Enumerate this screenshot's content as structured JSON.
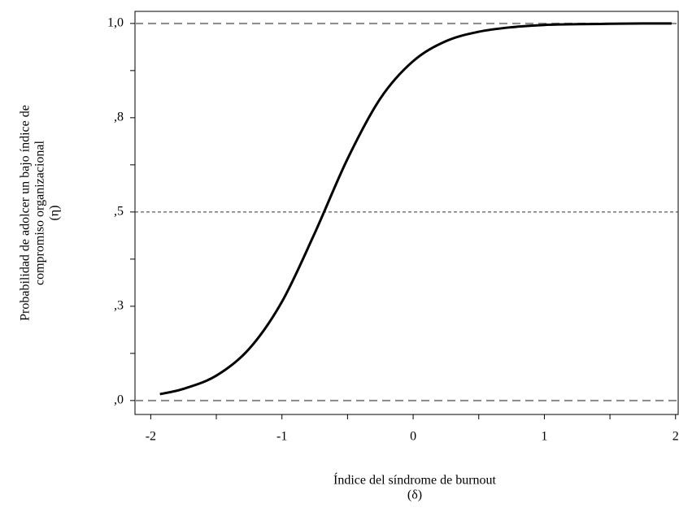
{
  "chart_data": {
    "type": "line",
    "x_label": [
      "Índice del síndrome de burnout",
      "(δ)"
    ],
    "y_label": [
      "Probabilidad de adolcer un bajo índice de",
      "compromiso organizacional",
      "(η)"
    ],
    "x": [
      -1.93,
      -1.75,
      -1.5,
      -1.25,
      -1,
      -0.75,
      -0.5,
      -0.25,
      0,
      0.25,
      0.5,
      0.75,
      1,
      1.25,
      1.5,
      1.75,
      1.97
    ],
    "series": [
      {
        "color": "#000000",
        "values": [
          0.017,
          0.031,
          0.066,
          0.137,
          0.262,
          0.444,
          0.641,
          0.801,
          0.9,
          0.953,
          0.978,
          0.99,
          0.996,
          0.998,
          0.999,
          1.0,
          1.0
        ]
      }
    ],
    "xlim": [
      -2.12,
      2.02
    ],
    "ylim": [
      -0.037,
      1.032
    ],
    "xticks": [
      -2,
      -1,
      0,
      1,
      2
    ],
    "xminor": [
      -1.5,
      -0.5,
      0.5,
      1.5
    ],
    "yticks": [
      {
        "value": 0,
        "label": ",0"
      },
      {
        "value": 0.25,
        "label": ",3"
      },
      {
        "value": 0.5,
        "label": ",5"
      },
      {
        "value": 0.75,
        "label": ",8"
      },
      {
        "value": 1,
        "label": "1,0"
      }
    ],
    "yminor": [
      0.125,
      0.375,
      0.625,
      0.875
    ],
    "reference_lines": [
      0,
      0.5,
      1
    ]
  }
}
